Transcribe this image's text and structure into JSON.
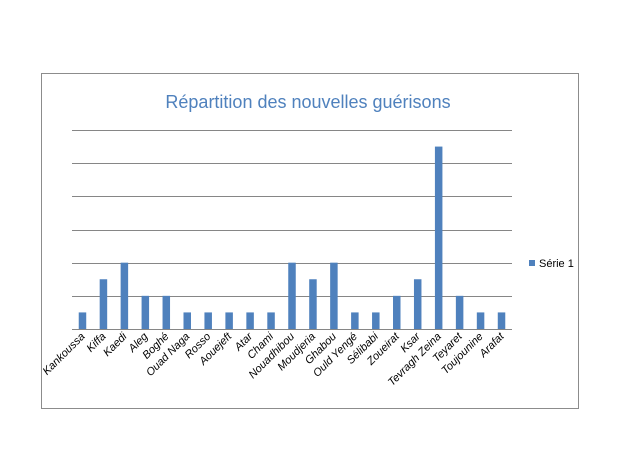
{
  "chart_data": {
    "type": "bar",
    "title": "Répartition des nouvelles guérisons",
    "xlabel": "",
    "ylabel": "",
    "categories": [
      "Kankoussa",
      "Kiffa",
      "Kaedi",
      "Aleg",
      "Boghé",
      "Ouad Naga",
      "Rosso",
      "Aouejeft",
      "Atar",
      "Chami",
      "Nouadhibou",
      "Moudjeria",
      "Ghabou",
      "Ould Yengé",
      "Sélibabi",
      "Zoueirat",
      "Ksar",
      "Tevragh Zeina",
      "Teyaret",
      "Toujounine",
      "Arafat"
    ],
    "series": [
      {
        "name": "Série 1",
        "values": [
          1,
          3,
          4,
          2,
          2,
          1,
          1,
          1,
          1,
          1,
          4,
          3,
          4,
          1,
          1,
          2,
          3,
          11,
          2,
          1,
          1
        ]
      }
    ],
    "ylim": [
      0,
      12
    ],
    "y_grid_step": 2,
    "y_tick_labels_shown": false,
    "grid": true,
    "legend": "right",
    "colors": {
      "bar": "#4f81bd",
      "title": "#4f81bd",
      "grid": "#868686",
      "axis": "#868686"
    }
  }
}
